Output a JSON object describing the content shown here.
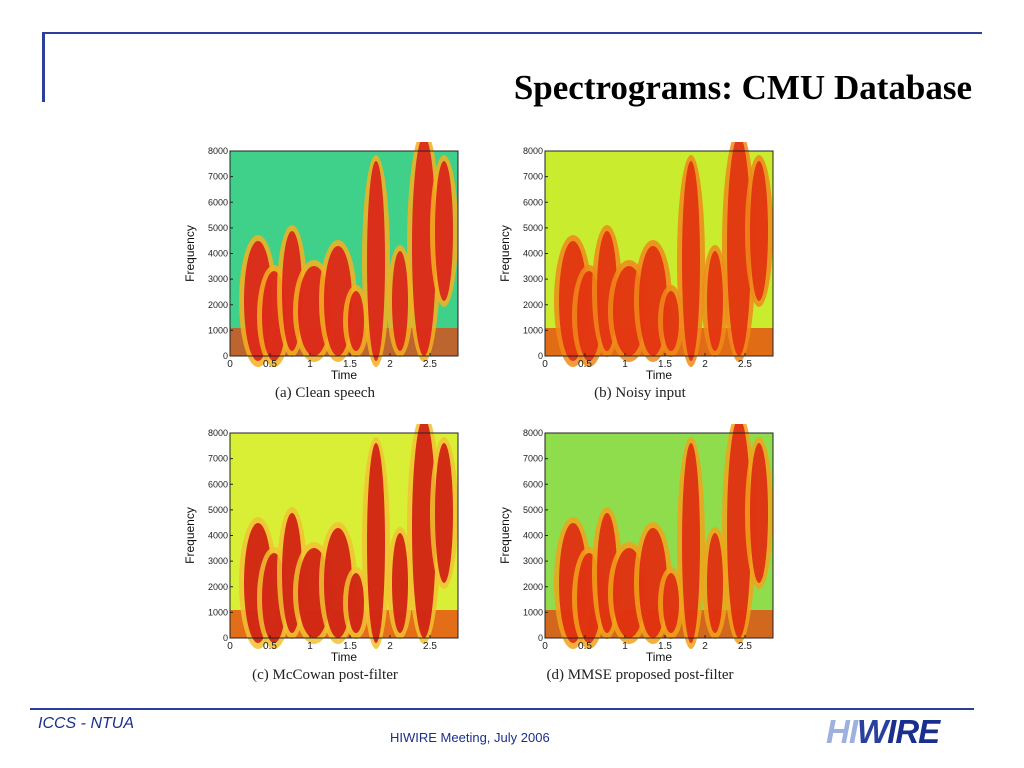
{
  "slide": {
    "title": "Spectrograms: CMU Database",
    "footer_left": "ICCS - NTUA",
    "footer_center": "HIWIRE Meeting, July 2006",
    "logo": {
      "part1": "HI",
      "part2": "W",
      "part3": "IRE"
    }
  },
  "chart_data": [
    {
      "type": "heatmap",
      "caption": "(a) Clean speech",
      "xlabel": "Time",
      "ylabel": "Frequency",
      "xticks": [
        "0",
        "0.5",
        "1",
        "1.5",
        "2",
        "2.5"
      ],
      "yticks": [
        "0",
        "1000",
        "2000",
        "3000",
        "4000",
        "5000",
        "6000",
        "7000",
        "8000"
      ],
      "xlim": [
        0,
        2.85
      ],
      "ylim": [
        0,
        8000
      ],
      "background": "#3fd08a"
    },
    {
      "type": "heatmap",
      "caption": "(b) Noisy input",
      "xlabel": "Time",
      "ylabel": "Frequency",
      "xticks": [
        "0",
        "0.5",
        "1",
        "1.5",
        "2",
        "2.5"
      ],
      "yticks": [
        "0",
        "1000",
        "2000",
        "3000",
        "4000",
        "5000",
        "6000",
        "7000",
        "8000"
      ],
      "xlim": [
        0,
        2.85
      ],
      "ylim": [
        0,
        8000
      ],
      "background": "#c9ec2e"
    },
    {
      "type": "heatmap",
      "caption": "(c) McCowan post-filter",
      "xlabel": "Time",
      "ylabel": "Frequency",
      "xticks": [
        "0",
        "0.5",
        "1",
        "1.5",
        "2",
        "2.5"
      ],
      "yticks": [
        "0",
        "1000",
        "2000",
        "3000",
        "4000",
        "5000",
        "6000",
        "7000",
        "8000"
      ],
      "xlim": [
        0,
        2.85
      ],
      "ylim": [
        0,
        8000
      ],
      "background": "#d8ef35"
    },
    {
      "type": "heatmap",
      "caption": "(d) MMSE proposed post-filter",
      "xlabel": "Time",
      "ylabel": "Frequency",
      "xticks": [
        "0",
        "0.5",
        "1",
        "1.5",
        "2",
        "2.5"
      ],
      "yticks": [
        "0",
        "1000",
        "2000",
        "3000",
        "4000",
        "5000",
        "6000",
        "7000",
        "8000"
      ],
      "xlim": [
        0,
        2.85
      ],
      "ylim": [
        0,
        8000
      ],
      "background": "#8fdc4c"
    }
  ]
}
